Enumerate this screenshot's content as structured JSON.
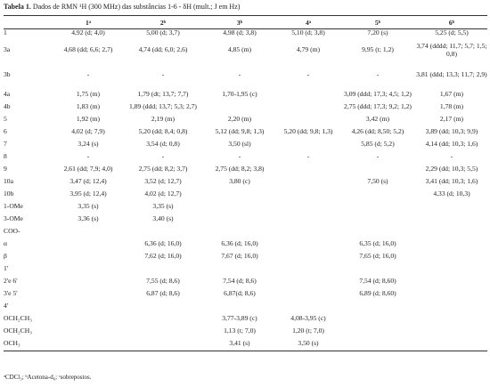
{
  "title": {
    "label": "Tabela 1.",
    "text": "Dados de RMN ¹H (300 MHz) das substâncias 1-6 - δH (mult.; J em Hz)"
  },
  "columns": [
    "",
    "1ᵃ",
    "2ᵇ",
    "3ᵇ",
    "4ᵃ",
    "5ᵇ",
    "6ᵇ"
  ],
  "rows": [
    {
      "label": "1",
      "h": 12,
      "cells": [
        "4,92 (d; 4,0)",
        "5,00 (d; 3,7)",
        "4,98 (d; 3,8)",
        "5,10 (d; 3,8)",
        "7,20 (s)",
        "5,25 (d; 5,5)"
      ]
    },
    {
      "label": "3a",
      "h": 27,
      "cells": [
        "4,68 (dd; 6,6; 2,7)",
        "4,74 (dd; 6,0; 2,6)",
        "4,85 (m)",
        "4,79 (m)",
        "9,95 (t; 1,2)",
        "3,74 (dddd; 11,7; 5,7; 1,5; 0,8)"
      ]
    },
    {
      "label": "3b",
      "h": 29,
      "cells": [
        "-",
        "-",
        "-",
        "-",
        "-",
        "3,81 (ddd; 13,3; 11,7; 2,9)"
      ]
    },
    {
      "label": "4a",
      "h": 14,
      "cells": [
        "1,75 (m)",
        "1,79 (dt; 13,7; 7,7)",
        "1,70-1,95 (c)",
        "",
        "3,09 (ddd; 17,3; 4,5; 1,2)",
        "1,67 (m)"
      ]
    },
    {
      "label": "4b",
      "h": 14,
      "cells": [
        "1,83 (m)",
        "1,89 (ddd; 13,7; 5,3; 2,7)",
        "",
        "",
        "2,75 (ddd; 17,3; 9,2; 1,2)",
        "1,78 (m)"
      ]
    },
    {
      "label": "5",
      "h": 14,
      "cells": [
        "1,92 (m)",
        "2,19 (m)",
        "2,20 (m)",
        "",
        "3,42 (m)",
        "2,17 (m)"
      ]
    },
    {
      "label": "6",
      "h": 14,
      "cells": [
        "4,02 (d; 7,9)",
        "5,20 (dd; 8,4; 0,8)",
        "5,12 (dd; 9,8; 1,3)",
        "5,20 (dd; 9,8; 1,3)",
        "4,26 (dd; 8,50; 5,2)",
        "3,89 (dd; 10,3; 9,9)"
      ]
    },
    {
      "label": "7",
      "h": 14,
      "cells": [
        "3,24 (s)",
        "3,54 (d; 0,8)",
        "3,50 (sl)",
        "",
        "5,85 (d; 5,2)",
        "4,14 (dd; 10,3; 1,6)"
      ]
    },
    {
      "label": "8",
      "h": 14,
      "cells": [
        "-",
        "-",
        "-",
        "-",
        "-",
        "-"
      ]
    },
    {
      "label": "9",
      "h": 14,
      "cells": [
        "2,61 (dd; 7,9; 4,0)",
        "2,75 (dd; 8,2; 3,7)",
        "2,75 (dd; 8,2; 3,8)",
        "",
        "",
        "2,29 (dd; 10,3; 5,5)"
      ]
    },
    {
      "label": "10a",
      "h": 14,
      "cells": [
        "3,47 (d; 12,4)",
        "3,52 (d; 12,7)",
        "3,80 (c)",
        "",
        "7,50 (s)",
        "3,41 (dd; 10,3; 1,6)"
      ]
    },
    {
      "label": "10b",
      "h": 14,
      "cells": [
        "3,95 (d; 12,4)",
        "4,02 (d; 12,7)",
        "",
        "",
        "",
        "4,33 (d; 10,3)"
      ]
    },
    {
      "label": "1-OMe",
      "h": 14,
      "cells": [
        "3,35 (s)",
        "3,35 (s)",
        "",
        "",
        "",
        ""
      ]
    },
    {
      "label": "3-OMe",
      "h": 14,
      "cells": [
        "3,36 (s)",
        "3,40 (s)",
        "",
        "",
        "",
        ""
      ]
    },
    {
      "label": "COO-",
      "h": 14,
      "cells": [
        "",
        "",
        "",
        "",
        "",
        ""
      ]
    },
    {
      "label": "α",
      "h": 14,
      "cells": [
        "",
        "6,36 (d; 16,0)",
        "6,36 (d; 16,0)",
        "",
        "6,35 (d; 16,0)",
        ""
      ]
    },
    {
      "label": "β",
      "h": 14,
      "cells": [
        "",
        "7,62 (d; 16,0)",
        "7,67 (d; 16,0)",
        "",
        "7,65 (d; 16,0)",
        ""
      ]
    },
    {
      "label": "1'",
      "h": 14,
      "cells": [
        "",
        "",
        "",
        "",
        "",
        ""
      ]
    },
    {
      "label": "2'e 6'",
      "h": 14,
      "cells": [
        "",
        "7,55 (d; 8,6)",
        "7,54 (d; 8,6)",
        "",
        "7,54 (d; 8,60)",
        ""
      ]
    },
    {
      "label": "3'e 5'",
      "h": 14,
      "cells": [
        "",
        "6,87 (d; 8,6)",
        "6,87(d; 8,6)",
        "",
        "6,89 (d; 8,60)",
        ""
      ]
    },
    {
      "label": "4'",
      "h": 14,
      "cells": [
        "",
        "",
        "",
        "",
        "",
        ""
      ]
    },
    {
      "label": "OCH₂CH₃",
      "h": 14,
      "cells": [
        "",
        "",
        "3,77-3,89 (c)",
        "4,08-3,95 (c)",
        "",
        ""
      ]
    },
    {
      "label": "OCH₂CH₃",
      "h": 14,
      "cells": [
        "",
        "",
        "1,13 (t; 7,0)",
        "1,20 (t; 7,0)",
        "",
        ""
      ]
    },
    {
      "label": "OCH₃",
      "h": 14,
      "cells": [
        "",
        "",
        "3,41 (s)",
        "3,50 (s)",
        "",
        ""
      ]
    }
  ],
  "footnote": "ᵃCDCl₃; ᵇAcetona-d₆; ᶜsobrepostos."
}
